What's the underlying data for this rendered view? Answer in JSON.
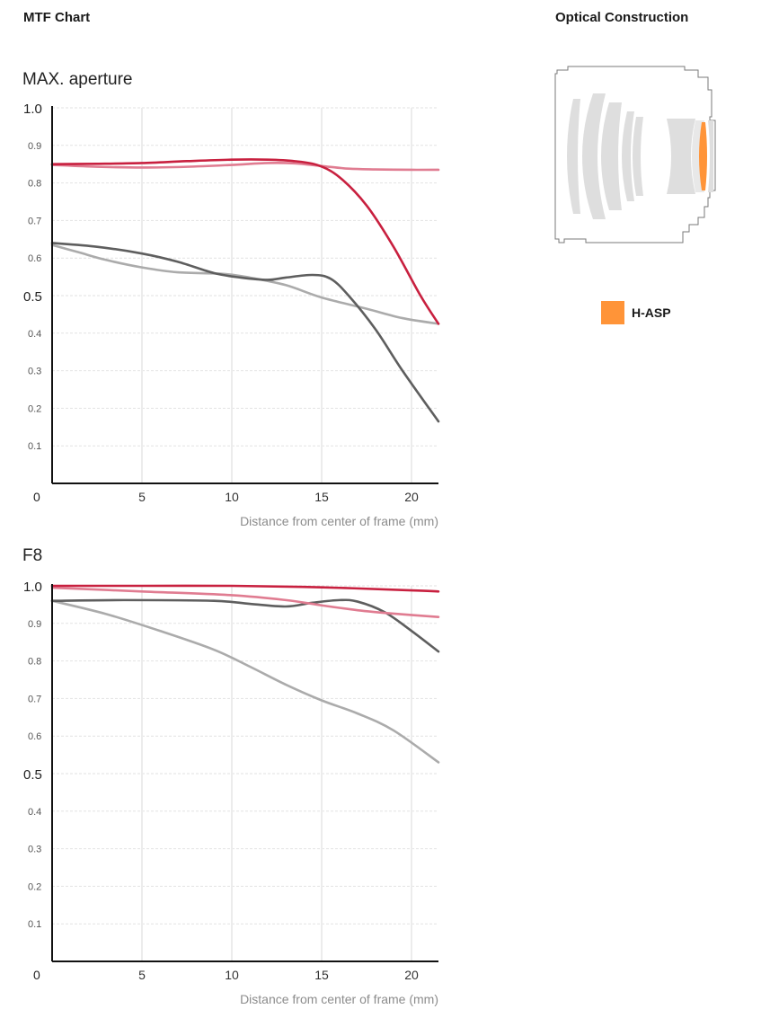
{
  "header": {
    "mtf_title": "MTF Chart",
    "optical_title": "Optical Construction"
  },
  "legend": {
    "label": "H-ASP",
    "color": "#ff9438"
  },
  "colors": {
    "red_strong": "#c8203f",
    "red_light": "#e07c91",
    "gray_dark": "#5e5e5e",
    "gray_light": "#ababab",
    "lens_gray": "#dedede",
    "outline": "#7a7a7a"
  },
  "chart_data": [
    {
      "type": "line",
      "title": "MAX. aperture",
      "xlabel": "Distance from center of frame (mm)",
      "ylabel": "",
      "xlim": [
        0,
        21.5
      ],
      "ylim": [
        0,
        1.0
      ],
      "x_ticks": [
        5,
        10,
        15,
        20
      ],
      "x_tick_labels": [
        "5",
        "10",
        "15",
        "20"
      ],
      "y_ticks": [
        0.1,
        0.2,
        0.3,
        0.4,
        0.5,
        0.6,
        0.7,
        0.8,
        0.9,
        1.0
      ],
      "y_tick_labels": [
        "0.1",
        "0.2",
        "0.3",
        "0.4",
        "0.5",
        "0.6",
        "0.7",
        "0.8",
        "0.9",
        "1.0"
      ],
      "origin_label": "0",
      "grid": true,
      "series": [
        {
          "color": "#c8203f",
          "x": [
            0,
            2.5,
            5,
            7.5,
            10,
            12,
            13.5,
            14.8,
            16,
            17.5,
            19,
            20.5,
            21.5
          ],
          "y": [
            0.85,
            0.851,
            0.853,
            0.858,
            0.862,
            0.862,
            0.858,
            0.847,
            0.815,
            0.74,
            0.63,
            0.5,
            0.425
          ]
        },
        {
          "color": "#e07c91",
          "x": [
            0,
            2.5,
            5,
            7.5,
            10,
            12,
            13.5,
            15,
            16.5,
            18,
            20,
            21.5
          ],
          "y": [
            0.848,
            0.843,
            0.841,
            0.843,
            0.848,
            0.853,
            0.852,
            0.845,
            0.838,
            0.836,
            0.835,
            0.835
          ]
        },
        {
          "color": "#5e5e5e",
          "x": [
            0,
            2.5,
            5,
            7,
            9,
            10.5,
            12,
            13,
            14.5,
            15.5,
            16.5,
            18,
            19.5,
            21.5
          ],
          "y": [
            0.64,
            0.63,
            0.612,
            0.59,
            0.56,
            0.548,
            0.542,
            0.548,
            0.555,
            0.545,
            0.5,
            0.41,
            0.3,
            0.165
          ]
        },
        {
          "color": "#ababab",
          "x": [
            0,
            1.5,
            3,
            5,
            7,
            9.5,
            11,
            13,
            15,
            17.5,
            19.5,
            21.5
          ],
          "y": [
            0.635,
            0.615,
            0.595,
            0.575,
            0.562,
            0.558,
            0.548,
            0.528,
            0.495,
            0.465,
            0.44,
            0.425
          ]
        }
      ]
    },
    {
      "type": "line",
      "title": "F8",
      "xlabel": "Distance from center of frame (mm)",
      "ylabel": "",
      "xlim": [
        0,
        21.5
      ],
      "ylim": [
        0,
        1.0
      ],
      "x_ticks": [
        5,
        10,
        15,
        20
      ],
      "x_tick_labels": [
        "5",
        "10",
        "15",
        "20"
      ],
      "y_ticks": [
        0.1,
        0.2,
        0.3,
        0.4,
        0.5,
        0.6,
        0.7,
        0.8,
        0.9,
        1.0
      ],
      "y_tick_labels": [
        "0.1",
        "0.2",
        "0.3",
        "0.4",
        "0.5",
        "0.6",
        "0.7",
        "0.8",
        "0.9",
        "1.0"
      ],
      "origin_label": "0",
      "grid": true,
      "series": [
        {
          "color": "#c8203f",
          "x": [
            0,
            5,
            10,
            15,
            20,
            21.5
          ],
          "y": [
            1.0,
            1.0,
            1.0,
            0.996,
            0.988,
            0.985
          ]
        },
        {
          "color": "#e07c91",
          "x": [
            0,
            5,
            10,
            13,
            15,
            17,
            19,
            21.5
          ],
          "y": [
            0.995,
            0.985,
            0.975,
            0.962,
            0.948,
            0.935,
            0.926,
            0.917
          ]
        },
        {
          "color": "#5e5e5e",
          "x": [
            0,
            4,
            9,
            11,
            13,
            14.5,
            16,
            17,
            18.5,
            20,
            21.5
          ],
          "y": [
            0.96,
            0.962,
            0.96,
            0.952,
            0.945,
            0.955,
            0.962,
            0.958,
            0.93,
            0.88,
            0.825
          ]
        },
        {
          "color": "#ababab",
          "x": [
            0,
            3,
            6,
            9,
            11,
            13,
            15,
            17,
            19,
            21.5
          ],
          "y": [
            0.96,
            0.925,
            0.88,
            0.83,
            0.785,
            0.737,
            0.695,
            0.66,
            0.615,
            0.53
          ]
        }
      ]
    }
  ]
}
